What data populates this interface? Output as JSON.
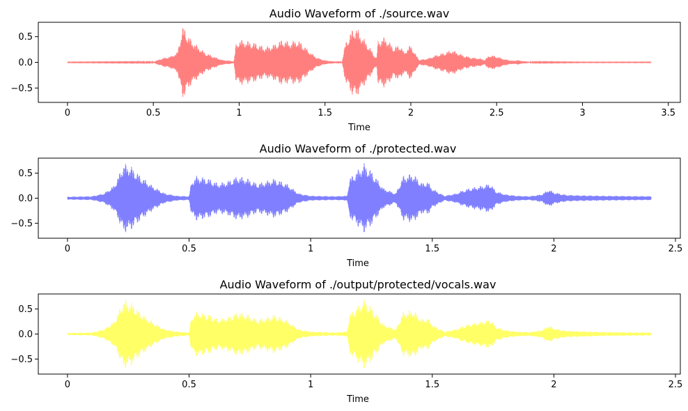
{
  "chart_data": [
    {
      "type": "line",
      "title": "Audio Waveform of ./source.wav",
      "xlabel": "Time",
      "ylabel": "",
      "xlim": [
        -0.17,
        3.57
      ],
      "ylim": [
        -0.78,
        0.78
      ],
      "xticks": [
        0,
        0.5,
        1,
        1.5,
        2,
        2.5,
        3,
        3.5
      ],
      "xtick_labels": [
        "0",
        "0.5",
        "1",
        "1.5",
        "2",
        "2.5",
        "3",
        "3.5"
      ],
      "yticks": [
        0.5,
        0.0,
        -0.5
      ],
      "ytick_labels": [
        "0.5",
        "0.0",
        "−0.5"
      ],
      "grid": false,
      "duration": 3.4,
      "series": [
        {
          "color": "#ff0000",
          "alpha": 0.5,
          "envelope_times": [
            0,
            0.5,
            0.55,
            0.6,
            0.64,
            0.67,
            0.68,
            0.7,
            0.72,
            0.75,
            0.8,
            0.85,
            0.9,
            0.95,
            0.97,
            0.98,
            1.0,
            1.05,
            1.1,
            1.15,
            1.2,
            1.25,
            1.3,
            1.33,
            1.36,
            1.4,
            1.45,
            1.5,
            1.55,
            1.6,
            1.62,
            1.66,
            1.68,
            1.72,
            1.76,
            1.8,
            1.81,
            1.85,
            1.9,
            1.94,
            1.96,
            2.0,
            2.03,
            2.05,
            2.1,
            2.15,
            2.2,
            2.24,
            2.3,
            2.35,
            2.4,
            2.43,
            2.46,
            2.5,
            2.55,
            2.6,
            2.62,
            2.64,
            2.7,
            3.0,
            3.4
          ],
          "envelope_amps": [
            0.005,
            0.01,
            0.08,
            0.12,
            0.2,
            0.7,
            0.68,
            0.55,
            0.45,
            0.35,
            0.2,
            0.12,
            0.05,
            0.03,
            0.02,
            0.35,
            0.45,
            0.42,
            0.38,
            0.3,
            0.35,
            0.45,
            0.4,
            0.45,
            0.4,
            0.25,
            0.1,
            0.04,
            0.02,
            0.02,
            0.4,
            0.65,
            0.7,
            0.5,
            0.3,
            0.08,
            0.45,
            0.5,
            0.3,
            0.35,
            0.2,
            0.35,
            0.15,
            0.05,
            0.08,
            0.15,
            0.2,
            0.25,
            0.15,
            0.1,
            0.08,
            0.05,
            0.15,
            0.12,
            0.06,
            0.03,
            0.05,
            0.03,
            0.01,
            0.005,
            0.005
          ]
        }
      ]
    },
    {
      "type": "line",
      "title": "Audio Waveform of ./protected.wav",
      "xlabel": "Time",
      "ylabel": "",
      "xlim": [
        -0.12,
        2.52
      ],
      "ylim": [
        -0.8,
        0.8
      ],
      "xticks": [
        0,
        0.5,
        1,
        1.5,
        2,
        2.5
      ],
      "xtick_labels": [
        "0",
        "0.5",
        "1",
        "1.5",
        "2",
        "2.5"
      ],
      "yticks": [
        0.5,
        0.0,
        -0.5
      ],
      "ytick_labels": [
        "0.5",
        "0.0",
        "−0.5"
      ],
      "grid": false,
      "duration": 2.4,
      "series": [
        {
          "color": "#0000ff",
          "alpha": 0.5,
          "envelope_times": [
            0,
            0.1,
            0.15,
            0.19,
            0.21,
            0.23,
            0.26,
            0.3,
            0.35,
            0.4,
            0.45,
            0.5,
            0.51,
            0.53,
            0.58,
            0.62,
            0.66,
            0.7,
            0.74,
            0.78,
            0.82,
            0.85,
            0.9,
            0.95,
            1.0,
            1.1,
            1.15,
            1.16,
            1.2,
            1.22,
            1.25,
            1.3,
            1.35,
            1.38,
            1.42,
            1.46,
            1.48,
            1.5,
            1.55,
            1.6,
            1.62,
            1.65,
            1.7,
            1.74,
            1.76,
            1.8,
            1.85,
            1.9,
            1.95,
            1.98,
            2.0,
            2.05,
            2.1,
            2.2,
            2.4
          ],
          "envelope_amps": [
            0.03,
            0.04,
            0.1,
            0.25,
            0.45,
            0.7,
            0.65,
            0.45,
            0.25,
            0.1,
            0.05,
            0.04,
            0.35,
            0.45,
            0.4,
            0.3,
            0.35,
            0.45,
            0.4,
            0.3,
            0.35,
            0.4,
            0.3,
            0.1,
            0.05,
            0.04,
            0.05,
            0.4,
            0.6,
            0.7,
            0.55,
            0.2,
            0.1,
            0.45,
            0.5,
            0.3,
            0.35,
            0.2,
            0.05,
            0.1,
            0.15,
            0.2,
            0.25,
            0.3,
            0.15,
            0.08,
            0.05,
            0.04,
            0.08,
            0.18,
            0.12,
            0.07,
            0.06,
            0.05,
            0.04
          ]
        }
      ]
    },
    {
      "type": "line",
      "title": "Audio Waveform of ./output/protected/vocals.wav",
      "xlabel": "Time",
      "ylabel": "",
      "xlim": [
        -0.12,
        2.52
      ],
      "ylim": [
        -0.8,
        0.8
      ],
      "xticks": [
        0,
        0.5,
        1,
        1.5,
        2,
        2.5
      ],
      "xtick_labels": [
        "0",
        "0.5",
        "1",
        "1.5",
        "2",
        "2.5"
      ],
      "yticks": [
        0.5,
        0.0,
        -0.5
      ],
      "ytick_labels": [
        "0.5",
        "0.0",
        "−0.5"
      ],
      "grid": false,
      "duration": 2.4,
      "series": [
        {
          "color": "#ffff00",
          "alpha": 0.6,
          "envelope_times": [
            0,
            0.1,
            0.15,
            0.19,
            0.21,
            0.23,
            0.26,
            0.3,
            0.35,
            0.4,
            0.45,
            0.5,
            0.51,
            0.53,
            0.58,
            0.62,
            0.66,
            0.7,
            0.74,
            0.78,
            0.82,
            0.85,
            0.9,
            0.95,
            1.0,
            1.1,
            1.15,
            1.16,
            1.2,
            1.22,
            1.25,
            1.3,
            1.35,
            1.38,
            1.42,
            1.46,
            1.48,
            1.5,
            1.55,
            1.6,
            1.62,
            1.65,
            1.7,
            1.74,
            1.76,
            1.8,
            1.85,
            1.9,
            1.95,
            1.98,
            2.0,
            2.05,
            2.1,
            2.2,
            2.4
          ],
          "envelope_amps": [
            0.02,
            0.03,
            0.1,
            0.25,
            0.45,
            0.7,
            0.65,
            0.45,
            0.25,
            0.1,
            0.05,
            0.03,
            0.35,
            0.45,
            0.4,
            0.3,
            0.35,
            0.45,
            0.4,
            0.3,
            0.35,
            0.4,
            0.3,
            0.1,
            0.05,
            0.03,
            0.05,
            0.4,
            0.6,
            0.7,
            0.55,
            0.2,
            0.1,
            0.45,
            0.5,
            0.3,
            0.35,
            0.2,
            0.05,
            0.1,
            0.15,
            0.2,
            0.25,
            0.3,
            0.15,
            0.08,
            0.05,
            0.04,
            0.08,
            0.18,
            0.12,
            0.07,
            0.06,
            0.04,
            0.03
          ]
        }
      ]
    }
  ]
}
